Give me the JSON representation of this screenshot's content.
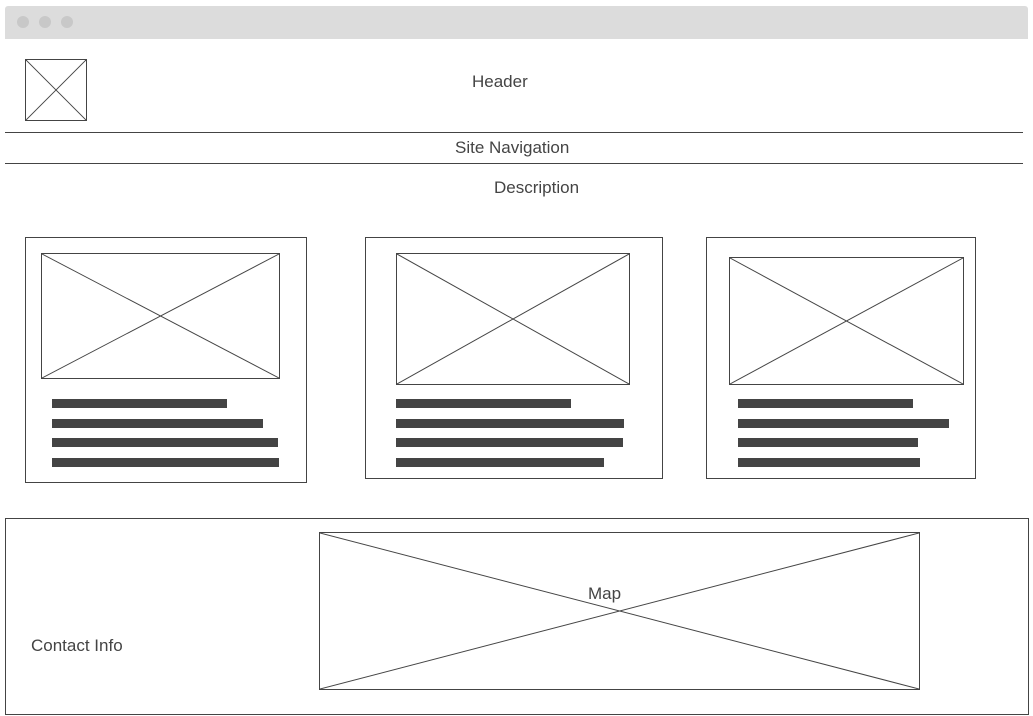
{
  "header": {
    "title": "Header",
    "logo_icon": "image-placeholder-icon"
  },
  "navigation": {
    "label": "Site Navigation"
  },
  "description": {
    "label": "Description"
  },
  "cards": [
    {
      "image_icon": "image-placeholder-icon"
    },
    {
      "image_icon": "image-placeholder-icon"
    },
    {
      "image_icon": "image-placeholder-icon"
    }
  ],
  "footer": {
    "contact_label": "Contact Info",
    "map_label": "Map"
  },
  "colors": {
    "line": "#444444",
    "titlebar": "#dcdcdc",
    "window_dot": "#c8c8c8"
  }
}
